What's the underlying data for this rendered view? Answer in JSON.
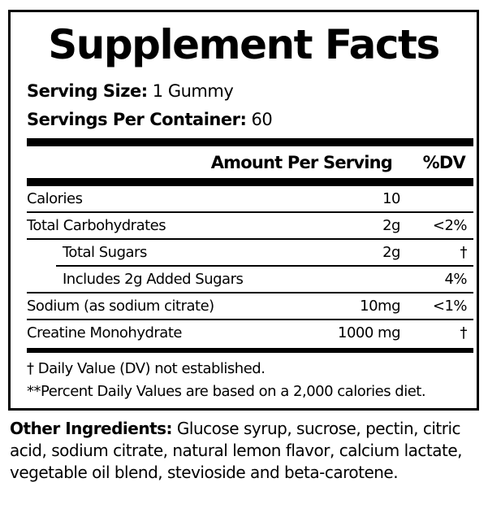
{
  "title": "Supplement Facts",
  "serving_size": {
    "label": "Serving Size:",
    "value": "1 Gummy"
  },
  "servings_per_container": {
    "label": "Servings Per Container:",
    "value": "60"
  },
  "header": {
    "amount": "Amount Per Serving",
    "dv": "%DV"
  },
  "rows": [
    {
      "label": "Calories",
      "amount": "10",
      "dv": "",
      "indent": false
    },
    {
      "label": "Total Carbohydrates",
      "amount": "2g",
      "dv": "<2%",
      "indent": false
    },
    {
      "label": "Total Sugars",
      "amount": "2g",
      "dv": "†",
      "indent": true
    },
    {
      "label": "Includes 2g Added Sugars",
      "amount": "",
      "dv": "4%",
      "indent": true
    },
    {
      "label": "Sodium (as sodium citrate)",
      "amount": "10mg",
      "dv": "<1%",
      "indent": false
    },
    {
      "label": "Creatine Monohydrate",
      "amount": "1000 mg",
      "dv": "†",
      "indent": false
    }
  ],
  "footnotes": [
    "† Daily Value (DV) not established.",
    "**Percent Daily Values are based on a 2,000 calories diet."
  ],
  "other_ingredients": {
    "label": "Other Ingredients:",
    "text": " Glucose syrup, sucrose, pectin, citric acid, sodium citrate, natural lemon flavor, calcium lactate, vegetable oil blend, stevioside and beta-carotene."
  }
}
